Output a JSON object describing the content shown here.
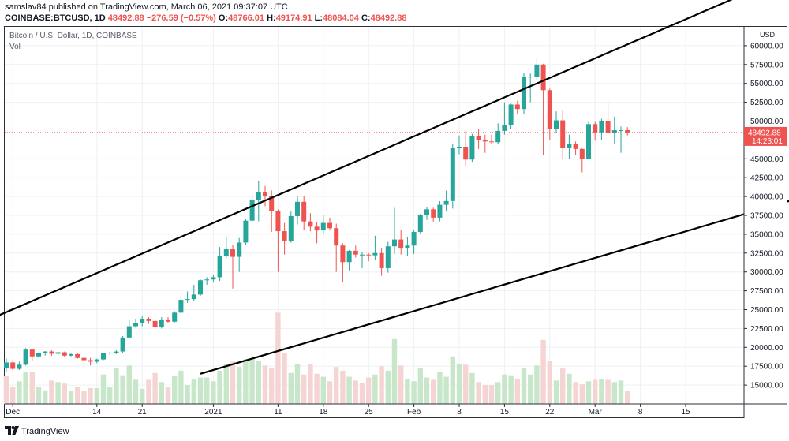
{
  "header": {
    "published_line": "samslav84 published on TradingView.com, March 06, 2021 09:37:07 UTC",
    "symbol": "COINBASE:BTCUSD, 1D",
    "last": "48492.88",
    "change": "−276.59 (−0.57%)",
    "o_label": "O:",
    "o_value": "48766.01",
    "h_label": "H:",
    "h_value": "49174.91",
    "l_label": "L:",
    "l_value": "48084.04",
    "c_label": "C:",
    "c_value": "48492.88"
  },
  "legend": {
    "title": "Bitcoin / U.S. Dollar, 1D, COINBASE",
    "vol": "Vol"
  },
  "footer": {
    "brand": "TradingView"
  },
  "colors": {
    "up": "#26a69a",
    "down": "#ef5350",
    "vol_up": "#c8e6c9",
    "vol_down": "#f5d5d3",
    "line": "#000000"
  },
  "chart_data": {
    "type": "candlestick",
    "title": "Bitcoin / U.S. Dollar, 1D, COINBASE",
    "ylabel": "USD",
    "ylim": [
      12500,
      62500
    ],
    "y_ticks": [
      "60000.00",
      "57500.00",
      "55000.00",
      "52500.00",
      "50000.00",
      "47500.00",
      "45000.00",
      "42500.00",
      "40000.00",
      "37500.00",
      "35000.00",
      "32500.00",
      "30000.00",
      "27500.00",
      "25000.00",
      "22500.00",
      "20000.00",
      "17500.00",
      "15000.00"
    ],
    "x_labels": [
      "Dec",
      "14",
      "21",
      "2021",
      "11",
      "18",
      "25",
      "Feb",
      "8",
      "15",
      "22",
      "Mar",
      "8",
      "15"
    ],
    "x_label_days": [
      [
        "2020-12-01",
        1
      ],
      [
        "2020-12-14",
        14
      ],
      [
        "2020-12-21",
        21
      ],
      [
        "2021-01-01",
        32
      ],
      [
        "2021-01-11",
        42
      ],
      [
        "2021-01-18",
        49
      ],
      [
        "2021-01-25",
        56
      ],
      [
        "2021-02-01",
        63
      ],
      [
        "2021-02-08",
        70
      ],
      [
        "2021-02-15",
        77
      ],
      [
        "2021-02-22",
        84
      ],
      [
        "2021-03-01",
        91
      ],
      [
        "2021-03-08",
        98
      ],
      [
        "2021-03-15",
        105
      ]
    ],
    "price_label": "48492.88",
    "countdown_label": "14:23:01",
    "start_date": "2020-11-26",
    "candles": [
      [
        17200,
        18500,
        16800,
        18000
      ],
      [
        18000,
        18300,
        16900,
        17150
      ],
      [
        17150,
        18100,
        17000,
        17700
      ],
      [
        17700,
        19900,
        17600,
        19700
      ],
      [
        19700,
        19800,
        18200,
        18800
      ],
      [
        18800,
        19300,
        18600,
        19200
      ],
      [
        19200,
        19500,
        18900,
        19450
      ],
      [
        19450,
        19600,
        18900,
        19150
      ],
      [
        19150,
        19400,
        18900,
        19350
      ],
      [
        19350,
        19450,
        18700,
        18900
      ],
      [
        18900,
        19200,
        18800,
        19100
      ],
      [
        19100,
        19300,
        18500,
        18600
      ],
      [
        18600,
        18700,
        17800,
        18300
      ],
      [
        18300,
        18600,
        17600,
        18100
      ],
      [
        18100,
        18500,
        17900,
        18400
      ],
      [
        18400,
        19300,
        18300,
        19200
      ],
      [
        19200,
        19400,
        19000,
        19300
      ],
      [
        19300,
        19600,
        19100,
        19450
      ],
      [
        19450,
        21500,
        19300,
        21300
      ],
      [
        21300,
        23600,
        21200,
        22800
      ],
      [
        22800,
        23800,
        22600,
        23200
      ],
      [
        23200,
        24100,
        22800,
        23800
      ],
      [
        23800,
        24000,
        23100,
        23500
      ],
      [
        23500,
        23800,
        22400,
        22700
      ],
      [
        22700,
        24000,
        22500,
        23700
      ],
      [
        23700,
        24000,
        23200,
        23400
      ],
      [
        23400,
        24800,
        23300,
        24600
      ],
      [
        24600,
        26800,
        24500,
        26300
      ],
      [
        26300,
        27400,
        25900,
        26400
      ],
      [
        26400,
        28300,
        26100,
        27000
      ],
      [
        27000,
        29000,
        26800,
        28900
      ],
      [
        28900,
        29300,
        28300,
        29000
      ],
      [
        29000,
        29600,
        28600,
        29300
      ],
      [
        29300,
        33300,
        28800,
        32100
      ],
      [
        32100,
        34700,
        31800,
        33000
      ],
      [
        33000,
        33600,
        27800,
        32000
      ],
      [
        32000,
        34500,
        30000,
        33900
      ],
      [
        33900,
        37000,
        33600,
        36800
      ],
      [
        36800,
        40300,
        36600,
        39500
      ],
      [
        39500,
        42000,
        36700,
        40600
      ],
      [
        40600,
        41400,
        38700,
        40100
      ],
      [
        40100,
        40800,
        35300,
        38100
      ],
      [
        38100,
        38300,
        30000,
        35400
      ],
      [
        35400,
        36500,
        32300,
        34100
      ],
      [
        34100,
        38000,
        33900,
        37400
      ],
      [
        37400,
        40100,
        36300,
        39300
      ],
      [
        39300,
        40000,
        35500,
        36700
      ],
      [
        36700,
        37800,
        35400,
        36000
      ],
      [
        36000,
        36600,
        33800,
        35500
      ],
      [
        35500,
        37500,
        35000,
        36500
      ],
      [
        36500,
        37200,
        35600,
        35800
      ],
      [
        35800,
        36400,
        30000,
        33500
      ],
      [
        33500,
        33800,
        28700,
        31300
      ],
      [
        31300,
        32900,
        30200,
        32800
      ],
      [
        32800,
        33500,
        31900,
        32300
      ],
      [
        32300,
        32600,
        30500,
        32300
      ],
      [
        32300,
        32500,
        31400,
        32200
      ],
      [
        32200,
        34800,
        31600,
        32500
      ],
      [
        32500,
        33200,
        29500,
        30500
      ],
      [
        30500,
        34000,
        29900,
        33400
      ],
      [
        33400,
        38500,
        32400,
        34300
      ],
      [
        34300,
        35600,
        32300,
        33200
      ],
      [
        33200,
        34600,
        32100,
        33500
      ],
      [
        33500,
        35500,
        32400,
        35300
      ],
      [
        35300,
        37700,
        35000,
        37600
      ],
      [
        37600,
        38600,
        36900,
        38300
      ],
      [
        38300,
        38500,
        36600,
        37200
      ],
      [
        37200,
        39400,
        36700,
        38900
      ],
      [
        38900,
        40800,
        38000,
        39400
      ],
      [
        39400,
        47000,
        38400,
        46400
      ],
      [
        46400,
        48100,
        45600,
        46600
      ],
      [
        46600,
        48700,
        44000,
        44900
      ],
      [
        44900,
        48300,
        44600,
        48000
      ],
      [
        48000,
        48900,
        46300,
        47500
      ],
      [
        47500,
        48200,
        45800,
        47300
      ],
      [
        47300,
        48200,
        46900,
        47200
      ],
      [
        47200,
        49700,
        46900,
        48700
      ],
      [
        48700,
        52500,
        48200,
        49500
      ],
      [
        49500,
        52300,
        49000,
        52200
      ],
      [
        52200,
        52700,
        50900,
        51600
      ],
      [
        51600,
        56400,
        50900,
        55900
      ],
      [
        55900,
        56300,
        52500,
        55900
      ],
      [
        55900,
        58300,
        55400,
        57500
      ],
      [
        57500,
        57600,
        45500,
        54100
      ],
      [
        54100,
        54300,
        47500,
        49000
      ],
      [
        49000,
        51300,
        48400,
        50100
      ],
      [
        50100,
        51400,
        44900,
        46400
      ],
      [
        46400,
        48200,
        45000,
        47000
      ],
      [
        47000,
        47300,
        45500,
        46300
      ],
      [
        46300,
        46400,
        43200,
        45000
      ],
      [
        45000,
        49900,
        44900,
        49600
      ],
      [
        49600,
        49900,
        47400,
        48500
      ],
      [
        48500,
        50300,
        47500,
        50000
      ],
      [
        50000,
        52500,
        48400,
        48400
      ],
      [
        48400,
        50600,
        46900,
        48800
      ],
      [
        48800,
        49300,
        45800,
        48800
      ],
      [
        48800,
        49200,
        48100,
        48500
      ]
    ],
    "volumes": [
      {
        "v": 16200,
        "up": false
      },
      {
        "v": 14700,
        "up": false
      },
      {
        "v": 15500,
        "up": true
      },
      {
        "v": 16700,
        "up": true
      },
      {
        "v": 16800,
        "up": false
      },
      {
        "v": 14700,
        "up": true
      },
      {
        "v": 14300,
        "up": true
      },
      {
        "v": 15600,
        "up": false
      },
      {
        "v": 15400,
        "up": true
      },
      {
        "v": 15200,
        "up": false
      },
      {
        "v": 14200,
        "up": true
      },
      {
        "v": 14800,
        "up": false
      },
      {
        "v": 14200,
        "up": false
      },
      {
        "v": 14600,
        "up": false
      },
      {
        "v": 14600,
        "up": true
      },
      {
        "v": 16400,
        "up": true
      },
      {
        "v": 14700,
        "up": true
      },
      {
        "v": 17200,
        "up": true
      },
      {
        "v": 16300,
        "up": true
      },
      {
        "v": 17600,
        "up": true
      },
      {
        "v": 15700,
        "up": true
      },
      {
        "v": 14500,
        "up": true
      },
      {
        "v": 15700,
        "up": false
      },
      {
        "v": 16600,
        "up": false
      },
      {
        "v": 15400,
        "up": true
      },
      {
        "v": 14800,
        "up": false
      },
      {
        "v": 16200,
        "up": true
      },
      {
        "v": 16900,
        "up": true
      },
      {
        "v": 15000,
        "up": true
      },
      {
        "v": 15800,
        "up": true
      },
      {
        "v": 16000,
        "up": true
      },
      {
        "v": 16000,
        "up": true
      },
      {
        "v": 15500,
        "up": true
      },
      {
        "v": 16900,
        "up": true
      },
      {
        "v": 17800,
        "up": true
      },
      {
        "v": 18100,
        "up": false
      },
      {
        "v": 17400,
        "up": true
      },
      {
        "v": 18400,
        "up": true
      },
      {
        "v": 18500,
        "up": true
      },
      {
        "v": 18200,
        "up": true
      },
      {
        "v": 17600,
        "up": false
      },
      {
        "v": 17200,
        "up": false
      },
      {
        "v": 24600,
        "up": false
      },
      {
        "v": 19300,
        "up": false
      },
      {
        "v": 16600,
        "up": true
      },
      {
        "v": 17800,
        "up": true
      },
      {
        "v": 16400,
        "up": false
      },
      {
        "v": 17800,
        "up": false
      },
      {
        "v": 16500,
        "up": false
      },
      {
        "v": 16100,
        "up": true
      },
      {
        "v": 15500,
        "up": false
      },
      {
        "v": 17400,
        "up": false
      },
      {
        "v": 16900,
        "up": false
      },
      {
        "v": 16100,
        "up": true
      },
      {
        "v": 15600,
        "up": false
      },
      {
        "v": 15300,
        "up": false
      },
      {
        "v": 16000,
        "up": false
      },
      {
        "v": 16400,
        "up": true
      },
      {
        "v": 17500,
        "up": false
      },
      {
        "v": 16900,
        "up": true
      },
      {
        "v": 21100,
        "up": true
      },
      {
        "v": 17600,
        "up": false
      },
      {
        "v": 15800,
        "up": true
      },
      {
        "v": 15500,
        "up": true
      },
      {
        "v": 17300,
        "up": true
      },
      {
        "v": 16000,
        "up": true
      },
      {
        "v": 15700,
        "up": false
      },
      {
        "v": 16800,
        "up": true
      },
      {
        "v": 16100,
        "up": true
      },
      {
        "v": 18800,
        "up": true
      },
      {
        "v": 17800,
        "up": true
      },
      {
        "v": 17700,
        "up": false
      },
      {
        "v": 16600,
        "up": true
      },
      {
        "v": 15400,
        "up": false
      },
      {
        "v": 15000,
        "up": false
      },
      {
        "v": 15000,
        "up": false
      },
      {
        "v": 15400,
        "up": true
      },
      {
        "v": 16400,
        "up": true
      },
      {
        "v": 16300,
        "up": true
      },
      {
        "v": 15800,
        "up": false
      },
      {
        "v": 17300,
        "up": true
      },
      {
        "v": 16400,
        "up": true
      },
      {
        "v": 17600,
        "up": true
      },
      {
        "v": 21000,
        "up": false
      },
      {
        "v": 18200,
        "up": false
      },
      {
        "v": 15600,
        "up": true
      },
      {
        "v": 17200,
        "up": false
      },
      {
        "v": 16500,
        "up": true
      },
      {
        "v": 15400,
        "up": false
      },
      {
        "v": 15100,
        "up": false
      },
      {
        "v": 15500,
        "up": true
      },
      {
        "v": 15700,
        "up": false
      },
      {
        "v": 15800,
        "up": true
      },
      {
        "v": 15700,
        "up": false
      },
      {
        "v": 15400,
        "up": true
      },
      {
        "v": 15600,
        "up": true
      },
      {
        "v": 14200,
        "up": false
      }
    ],
    "trendlines": [
      {
        "name": "upper-channel-line",
        "from": [
          -1,
          24300
        ],
        "to": [
          128,
          72000
        ]
      },
      {
        "name": "lower-channel-line",
        "from": [
          30,
          16500
        ],
        "to": [
          175,
          53000
        ]
      }
    ]
  }
}
